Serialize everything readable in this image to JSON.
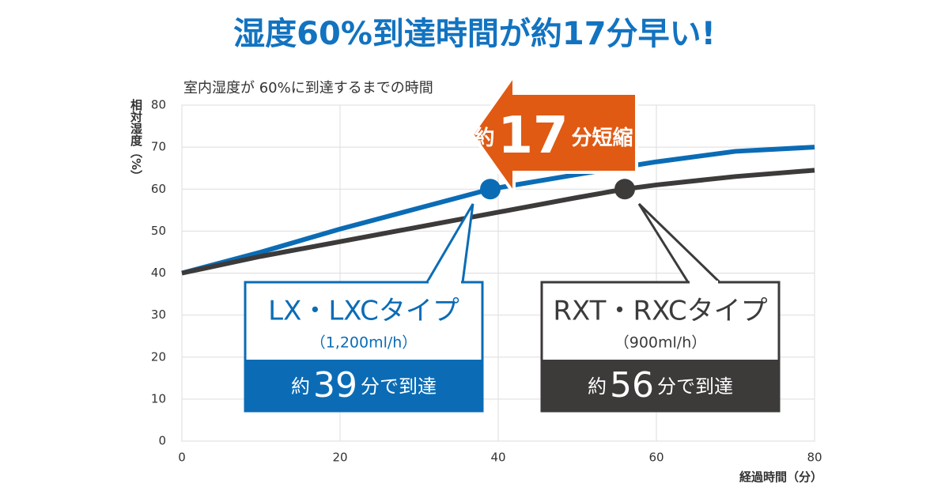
{
  "chart_data": {
    "type": "line",
    "title": "湿度60%到達時間が約17分早い!",
    "subtitle": "室内湿度が 60%に到達するまでの時間",
    "y_label": "相対湿度（%）",
    "x_label": "経過時間（分）",
    "series": [
      {
        "name": "LX・LXCタイプ",
        "color": "#0b6cb5",
        "x": [
          0,
          10,
          20,
          30,
          39,
          50,
          60,
          70,
          80
        ],
        "values": [
          40,
          45,
          50.5,
          55.5,
          60,
          63.5,
          66.5,
          69,
          70
        ]
      },
      {
        "name": "RXT・RXCタイプ",
        "color": "#3d3a3a",
        "x": [
          0,
          10,
          20,
          30,
          40,
          50,
          56,
          60,
          70,
          80
        ],
        "values": [
          40,
          44,
          47.5,
          51,
          54.5,
          58,
          60,
          61,
          63,
          64.5
        ]
      }
    ],
    "xlim": [
      0,
      80
    ],
    "xticks": [
      0,
      20,
      40,
      60,
      80
    ],
    "ylim": [
      0,
      80
    ],
    "yticks": [
      0,
      10,
      20,
      30,
      40,
      50,
      60,
      70,
      80
    ],
    "grid": true,
    "callouts": [
      {
        "spec": "（1,200ml/h）",
        "prefix": "約",
        "minutes": 39,
        "suffix": "分で到達"
      },
      {
        "spec": "（900ml/h）",
        "prefix": "約",
        "minutes": 56,
        "suffix": "分で到達"
      }
    ],
    "difference": {
      "prefix": "約",
      "minutes": 17,
      "suffix": "分短縮",
      "color": "#e05a14"
    }
  }
}
